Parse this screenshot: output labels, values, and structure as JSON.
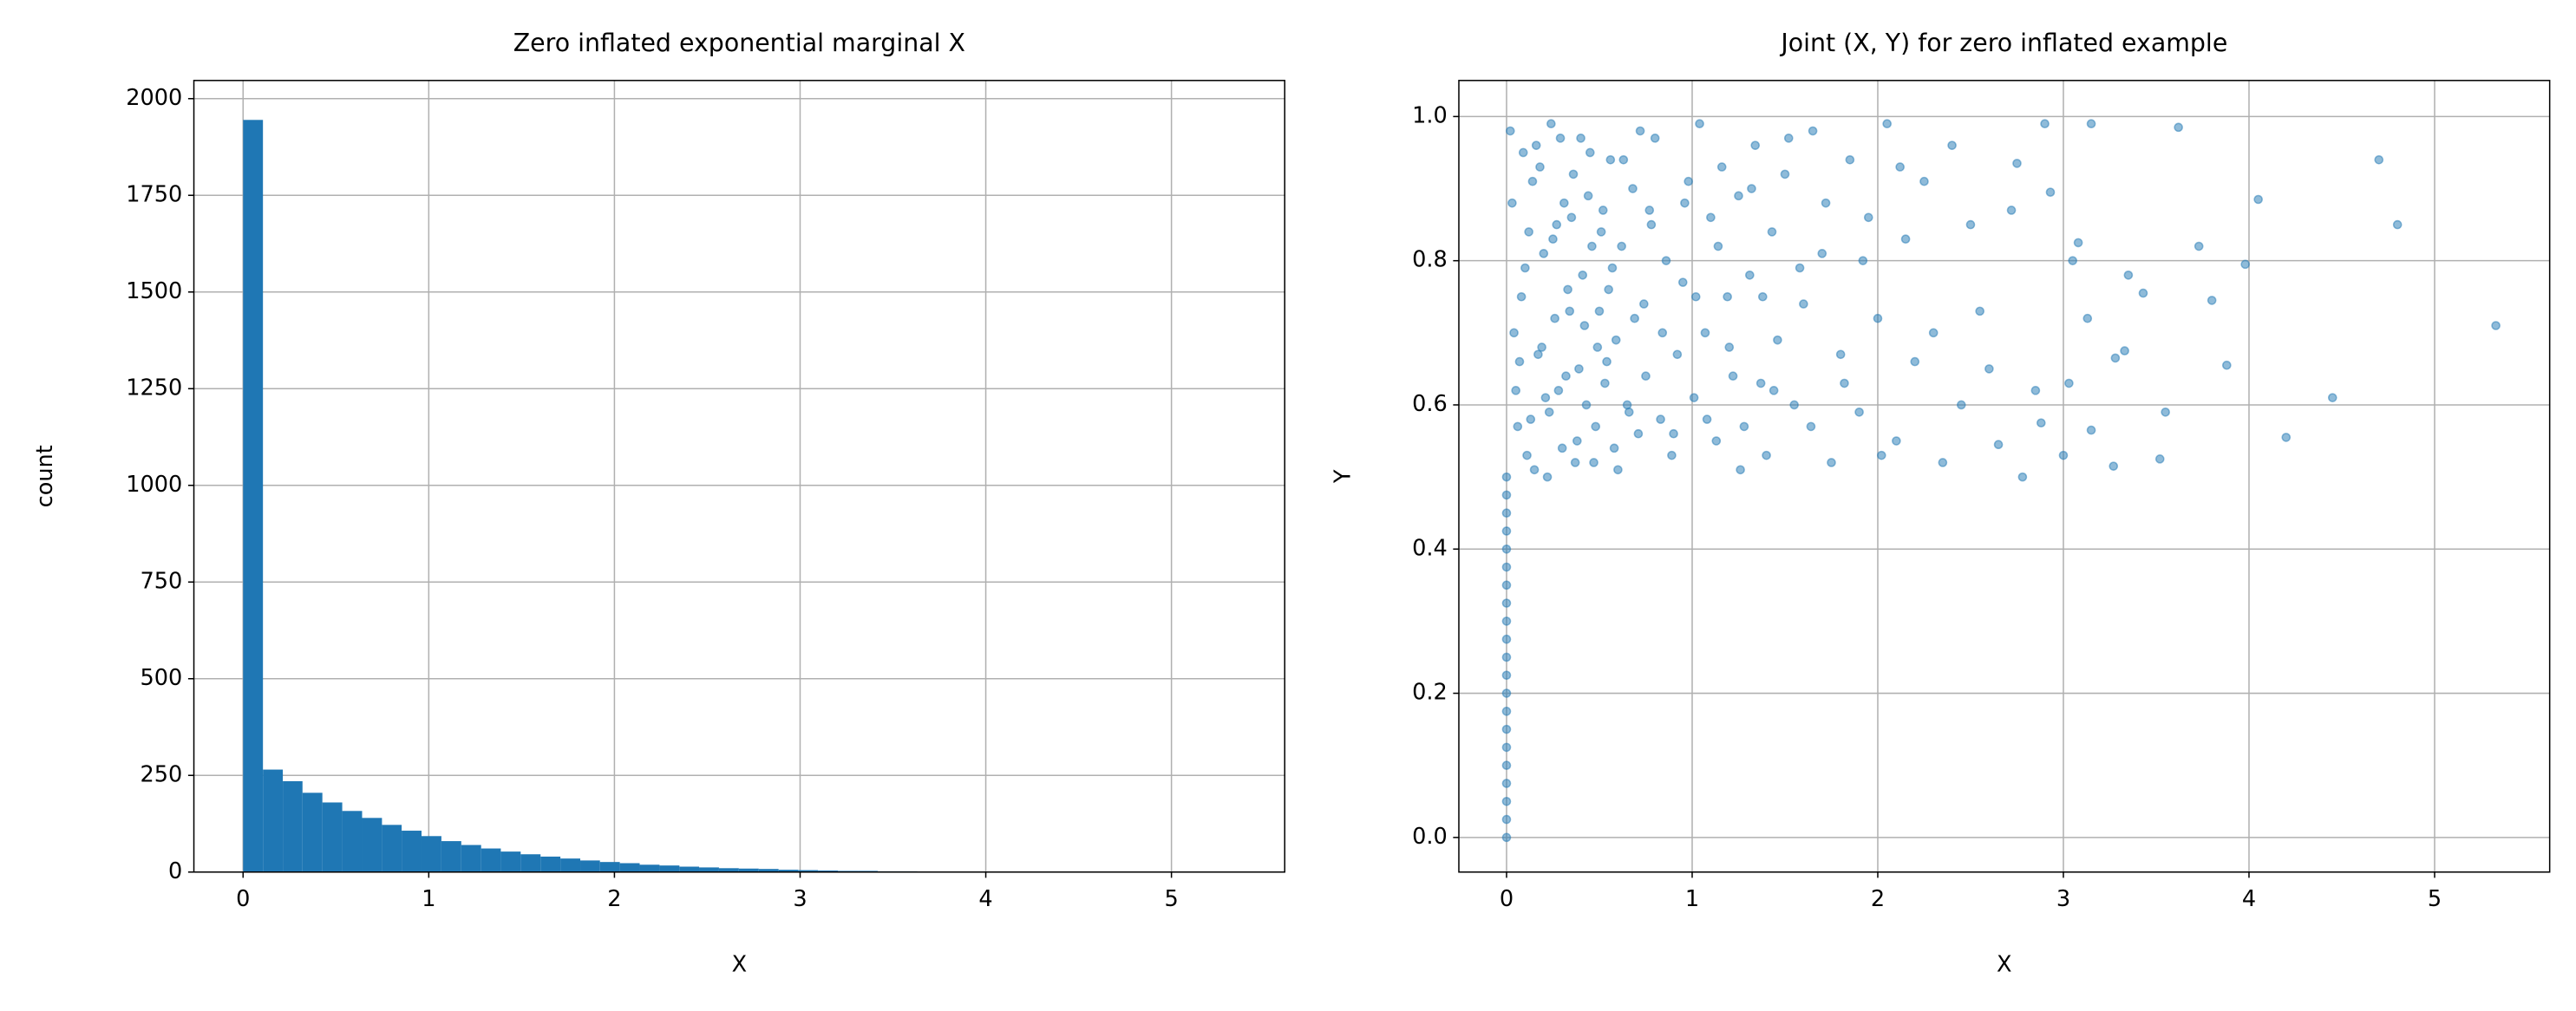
{
  "chart_data": [
    {
      "type": "histogram",
      "title": "Zero inflated exponential marginal X",
      "x_label": "X",
      "y_label": "count",
      "color": "#1f77b4",
      "grid": true,
      "bins": [
        0,
        0.107,
        0.214,
        0.32,
        0.427,
        0.534,
        0.641,
        0.748,
        0.854,
        0.961,
        1.068,
        1.175,
        1.282,
        1.388,
        1.495,
        1.602,
        1.709,
        1.816,
        1.922,
        2.029,
        2.136,
        2.243,
        2.35,
        2.456,
        2.563,
        2.67,
        2.777,
        2.884,
        2.99,
        3.097,
        3.204,
        3.311,
        3.418,
        3.524,
        3.631,
        3.738,
        3.845,
        3.952,
        4.058,
        4.165,
        4.272,
        4.379,
        4.486,
        4.592,
        4.699,
        4.806,
        4.913,
        5.02,
        5.126,
        5.233,
        5.34
      ],
      "values": [
        1945,
        265,
        235,
        205,
        180,
        158,
        140,
        122,
        107,
        93,
        80,
        70,
        61,
        53,
        46,
        40,
        35,
        30,
        26,
        23,
        19,
        17,
        14,
        12,
        10,
        9,
        8,
        6,
        5,
        4,
        3,
        3,
        2,
        2,
        1,
        1,
        1,
        1,
        0,
        1,
        0,
        0,
        1,
        0,
        1,
        0,
        1,
        0,
        0,
        1
      ],
      "xlim": [
        -0.265,
        5.61
      ],
      "ylim": [
        0,
        2047
      ],
      "xticks": [
        0,
        1,
        2,
        3,
        4,
        5
      ],
      "yticks": [
        0,
        250,
        500,
        750,
        1000,
        1250,
        1500,
        1750,
        2000
      ]
    },
    {
      "type": "scatter",
      "title": "Joint (X, Y) for zero inflated example",
      "x_label": "X",
      "y_label": "Y",
      "color": "#1f77b4",
      "grid": true,
      "x": [
        0,
        0,
        0,
        0,
        0,
        0,
        0,
        0,
        0,
        0,
        0,
        0,
        0,
        0,
        0,
        0,
        0,
        0,
        0,
        0,
        0,
        0.02,
        0.05,
        0.08,
        0.11,
        0.03,
        0.14,
        0.17,
        0.2,
        0.06,
        0.09,
        0.23,
        0.26,
        0.12,
        0.29,
        0.32,
        0.15,
        0.35,
        0.04,
        0.38,
        0.18,
        0.41,
        0.21,
        0.44,
        0.07,
        0.47,
        0.24,
        0.5,
        0.1,
        0.53,
        0.27,
        0.56,
        0.13,
        0.59,
        0.3,
        0.62,
        0.16,
        0.65,
        0.33,
        0.68,
        0.19,
        0.71,
        0.36,
        0.74,
        0.22,
        0.77,
        0.39,
        0.8,
        0.25,
        0.83,
        0.42,
        0.86,
        0.28,
        0.89,
        0.45,
        0.92,
        0.31,
        0.95,
        0.48,
        0.98,
        0.34,
        1.01,
        0.51,
        1.04,
        0.37,
        1.07,
        0.54,
        1.1,
        0.4,
        1.13,
        0.57,
        1.16,
        0.43,
        1.19,
        0.6,
        1.22,
        0.46,
        1.25,
        0.63,
        1.28,
        0.49,
        1.31,
        0.66,
        1.34,
        0.52,
        1.37,
        0.69,
        1.4,
        0.55,
        1.43,
        0.72,
        1.46,
        0.58,
        1.5,
        0.75,
        1.55,
        0.78,
        1.6,
        0.84,
        1.65,
        0.9,
        1.7,
        0.96,
        1.75,
        1.02,
        1.8,
        1.08,
        1.85,
        1.14,
        1.9,
        1.2,
        1.95,
        1.26,
        2.0,
        1.32,
        2.05,
        1.38,
        2.1,
        1.44,
        2.15,
        1.52,
        2.2,
        1.58,
        2.25,
        1.64,
        2.3,
        1.72,
        2.35,
        1.82,
        2.4,
        1.92,
        2.45,
        2.02,
        2.5,
        2.12,
        2.55,
        5.33,
        4.8,
        4.7,
        4.05,
        4.45,
        4.2,
        3.98,
        3.88,
        3.8,
        3.73,
        3.62,
        3.55,
        3.52,
        3.43,
        3.35,
        3.33,
        3.28,
        3.27,
        3.15,
        3.13,
        3.15,
        3.08,
        3.05,
        3.03,
        3.0,
        2.93,
        2.9,
        2.88,
        2.85,
        2.78,
        2.75,
        2.72,
        2.65,
        2.6
      ],
      "values": [
        0,
        0.025,
        0.05,
        0.075,
        0.1,
        0.125,
        0.15,
        0.175,
        0.2,
        0.225,
        0.25,
        0.275,
        0.3,
        0.325,
        0.35,
        0.375,
        0.4,
        0.425,
        0.45,
        0.475,
        0.5,
        0.98,
        0.62,
        0.75,
        0.53,
        0.88,
        0.91,
        0.67,
        0.81,
        0.57,
        0.95,
        0.59,
        0.72,
        0.84,
        0.97,
        0.64,
        0.51,
        0.86,
        0.7,
        0.55,
        0.93,
        0.78,
        0.61,
        0.89,
        0.66,
        0.52,
        0.99,
        0.73,
        0.79,
        0.63,
        0.85,
        0.94,
        0.58,
        0.69,
        0.54,
        0.82,
        0.96,
        0.6,
        0.76,
        0.9,
        0.68,
        0.56,
        0.92,
        0.74,
        0.5,
        0.87,
        0.65,
        0.97,
        0.83,
        0.58,
        0.71,
        0.8,
        0.62,
        0.53,
        0.95,
        0.67,
        0.88,
        0.77,
        0.57,
        0.91,
        0.73,
        0.61,
        0.84,
        0.99,
        0.52,
        0.7,
        0.66,
        0.86,
        0.97,
        0.55,
        0.79,
        0.93,
        0.6,
        0.75,
        0.51,
        0.64,
        0.82,
        0.89,
        0.94,
        0.57,
        0.68,
        0.78,
        0.59,
        0.96,
        0.87,
        0.63,
        0.72,
        0.53,
        0.76,
        0.84,
        0.98,
        0.69,
        0.54,
        0.92,
        0.64,
        0.6,
        0.85,
        0.74,
        0.7,
        0.98,
        0.56,
        0.81,
        0.88,
        0.52,
        0.75,
        0.67,
        0.58,
        0.94,
        0.82,
        0.59,
        0.68,
        0.86,
        0.51,
        0.72,
        0.9,
        0.99,
        0.75,
        0.55,
        0.62,
        0.83,
        0.97,
        0.66,
        0.79,
        0.91,
        0.57,
        0.7,
        0.88,
        0.52,
        0.63,
        0.96,
        0.8,
        0.6,
        0.53,
        0.85,
        0.93,
        0.73,
        0.71,
        0.85,
        0.94,
        0.885,
        0.61,
        0.555,
        0.795,
        0.655,
        0.745,
        0.82,
        0.985,
        0.59,
        0.525,
        0.755,
        0.78,
        0.675,
        0.665,
        0.515,
        0.99,
        0.72,
        0.565,
        0.825,
        0.8,
        0.63,
        0.53,
        0.895,
        0.99,
        0.575,
        0.62,
        0.5,
        0.935,
        0.87,
        0.545,
        0.65
      ],
      "xlim": [
        -0.257,
        5.62
      ],
      "ylim": [
        -0.048,
        1.05
      ],
      "xticks": [
        0,
        1,
        2,
        3,
        4,
        5
      ],
      "yticks": [
        {
          "value": 0,
          "label": "0.0"
        },
        0.2,
        0.4,
        0.6,
        0.8,
        {
          "value": 1,
          "label": "1.0"
        }
      ]
    }
  ]
}
